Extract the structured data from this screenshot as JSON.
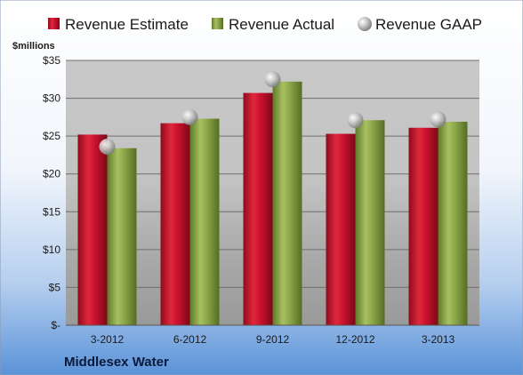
{
  "chart_data": {
    "type": "bar",
    "categories": [
      "3-2012",
      "6-2012",
      "9-2012",
      "12-2012",
      "3-2013"
    ],
    "series": [
      {
        "name": "Revenue Estimate",
        "values": [
          25.2,
          26.7,
          30.7,
          25.3,
          26.1
        ],
        "color": "#c8102e"
      },
      {
        "name": "Revenue Actual",
        "values": [
          23.4,
          27.3,
          32.2,
          27.1,
          26.9
        ],
        "color": "#8aa448"
      },
      {
        "name": "Revenue GAAP",
        "values": [
          23.6,
          27.5,
          32.5,
          27.1,
          27.2
        ],
        "color": "#b8b8b8",
        "marker": "sphere"
      }
    ],
    "yticks": [
      "$-",
      "$5",
      "$10",
      "$15",
      "$20",
      "$25",
      "$30",
      "$35"
    ],
    "ylim": [
      0,
      35
    ],
    "ylabel": "$millions",
    "grid": true,
    "legend": "top",
    "footer": "Middlesex Water"
  }
}
